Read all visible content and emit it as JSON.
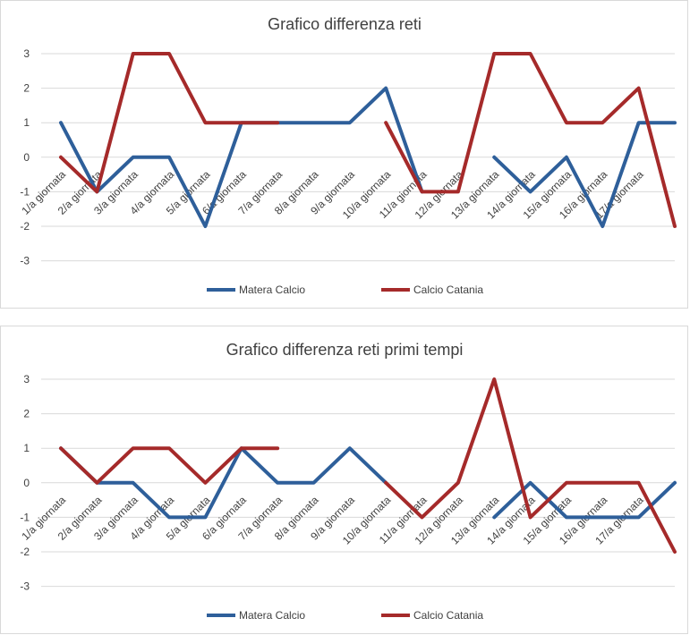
{
  "chart_data": [
    {
      "type": "line",
      "title": "Grafico differenza reti",
      "xlabel": "",
      "ylabel": "",
      "ylim": [
        -3,
        3
      ],
      "yticks": [
        "3",
        "2",
        "1",
        "0",
        "-1",
        "-2",
        "-3"
      ],
      "grid": true,
      "legend": "bottom",
      "categories": [
        "1/a giornata",
        "2/a giornata",
        "3/a giornata",
        "4/a giornata",
        "5/a giornata",
        "6/a giornata",
        "7/a giornata",
        "8/a giornata",
        "9/a giornata",
        "10/a giornata",
        "11/a giornata",
        "12/a giornata",
        "13/a giornata",
        "14/a giornata",
        "15/a giornata",
        "16/a giornata",
        "17/a giornata",
        ""
      ],
      "series": [
        {
          "name": "Matera Calcio",
          "color": "#2e5f9a",
          "values": [
            1,
            -1,
            0,
            0,
            -2,
            1,
            1,
            1,
            1,
            2,
            -1,
            null,
            0,
            -1,
            0,
            -2,
            1,
            1
          ]
        },
        {
          "name": "Calcio Catania",
          "color": "#a52a2a",
          "values": [
            0,
            -1,
            3,
            3,
            1,
            1,
            1,
            null,
            null,
            1,
            -1,
            -1,
            3,
            3,
            1,
            1,
            2,
            -2
          ]
        }
      ]
    },
    {
      "type": "line",
      "title": "Grafico differenza reti primi tempi",
      "xlabel": "",
      "ylabel": "",
      "ylim": [
        -3,
        3
      ],
      "yticks": [
        "3",
        "2",
        "1",
        "0",
        "-1",
        "-2",
        "-3"
      ],
      "grid": true,
      "legend": "bottom",
      "categories": [
        "1/a giornata",
        "2/a giornata",
        "3/a giornata",
        "4/a giornata",
        "5/a giornata",
        "6/a giornata",
        "7/a giornata",
        "8/a giornata",
        "9/a giornata",
        "10/a giornata",
        "11/a giornata",
        "12/a giornata",
        "13/a giornata",
        "14/a giornata",
        "15/a giornata",
        "16/a giornata",
        "17/a giornata",
        ""
      ],
      "series": [
        {
          "name": "Matera Calcio",
          "color": "#2e5f9a",
          "values": [
            1,
            0,
            0,
            -1,
            -1,
            1,
            0,
            0,
            1,
            0,
            null,
            null,
            -1,
            0,
            -1,
            -1,
            -1,
            0
          ]
        },
        {
          "name": "Calcio Catania",
          "color": "#a52a2a",
          "values": [
            1,
            0,
            1,
            1,
            0,
            1,
            1,
            null,
            null,
            0,
            -1,
            0,
            3,
            -1,
            0,
            0,
            0,
            -2
          ]
        }
      ]
    }
  ]
}
